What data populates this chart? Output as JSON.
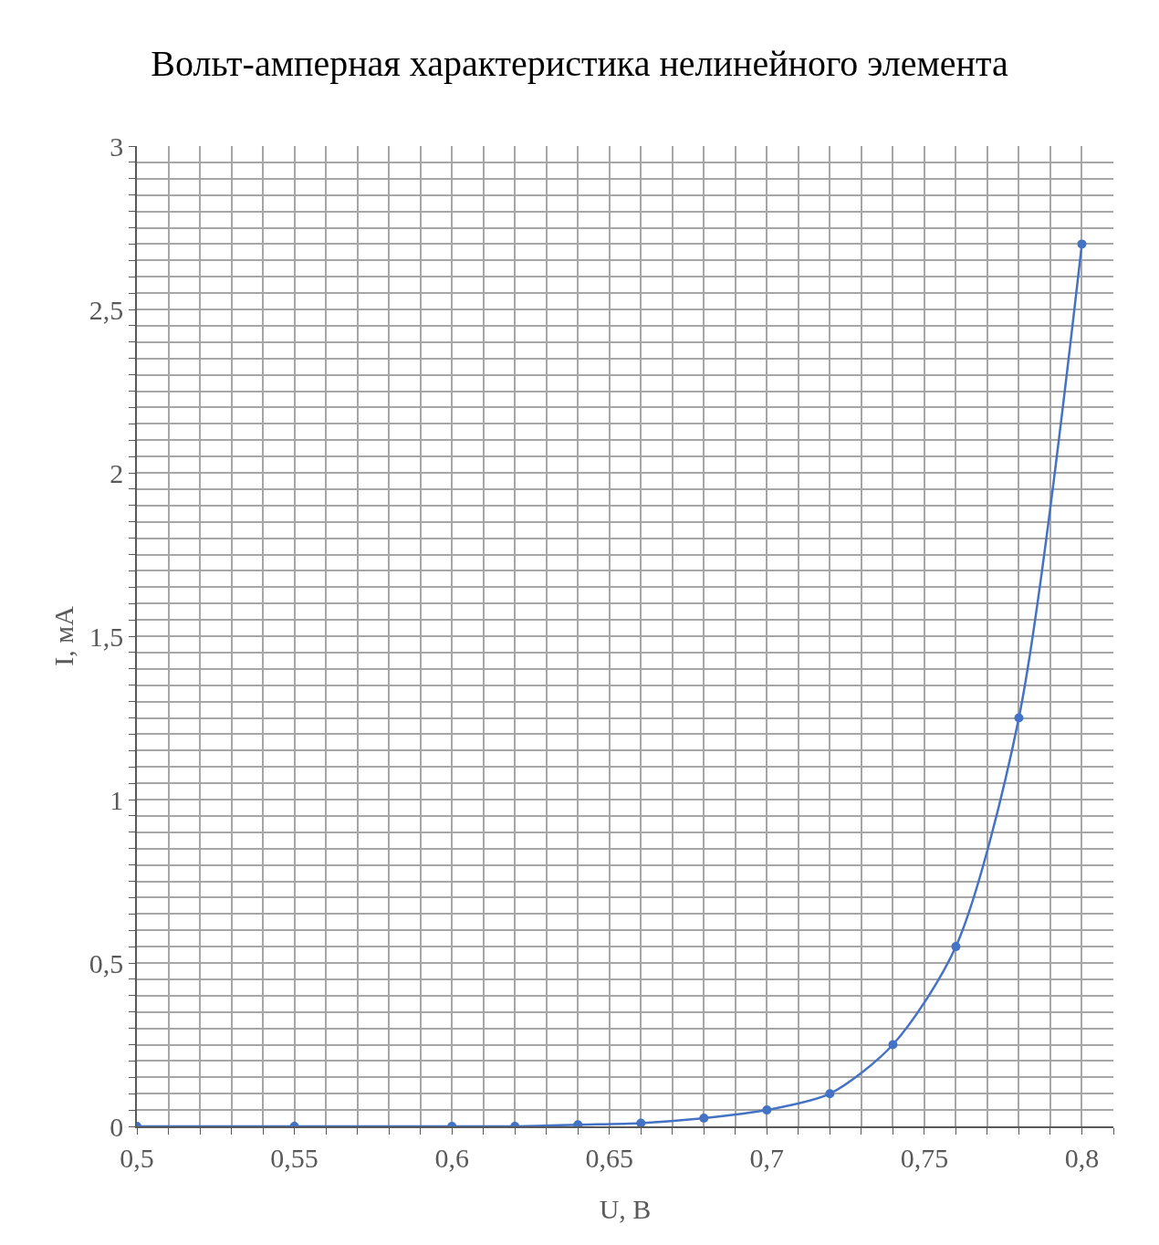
{
  "chart_data": {
    "type": "line",
    "title": "Вольт-амперная характеристика нелинейного элемента",
    "xlabel": "U, В",
    "ylabel": "I, мА",
    "x": [
      0.5,
      0.55,
      0.6,
      0.62,
      0.64,
      0.66,
      0.68,
      0.7,
      0.72,
      0.74,
      0.76,
      0.78,
      0.8
    ],
    "series": [
      {
        "color": "#4472c4",
        "values": [
          0,
          0,
          0,
          0,
          0.005,
          0.01,
          0.025,
          0.05,
          0.1,
          0.25,
          0.55,
          1.25,
          2.7
        ]
      }
    ],
    "xlim": [
      0.5,
      0.81
    ],
    "xticks": [
      {
        "value": 0.5,
        "label": "0,5"
      },
      {
        "value": 0.51,
        "label": null
      },
      {
        "value": 0.52,
        "label": null
      },
      {
        "value": 0.53,
        "label": null
      },
      {
        "value": 0.54,
        "label": null
      },
      {
        "value": 0.55,
        "label": "0,55"
      },
      {
        "value": 0.56,
        "label": null
      },
      {
        "value": 0.57,
        "label": null
      },
      {
        "value": 0.58,
        "label": null
      },
      {
        "value": 0.59,
        "label": null
      },
      {
        "value": 0.6,
        "label": "0,6"
      },
      {
        "value": 0.61,
        "label": null
      },
      {
        "value": 0.62,
        "label": null
      },
      {
        "value": 0.63,
        "label": null
      },
      {
        "value": 0.64,
        "label": null
      },
      {
        "value": 0.65,
        "label": "0,65"
      },
      {
        "value": 0.66,
        "label": null
      },
      {
        "value": 0.67,
        "label": null
      },
      {
        "value": 0.68,
        "label": null
      },
      {
        "value": 0.69,
        "label": null
      },
      {
        "value": 0.7,
        "label": "0,7"
      },
      {
        "value": 0.71,
        "label": null
      },
      {
        "value": 0.72,
        "label": null
      },
      {
        "value": 0.73,
        "label": null
      },
      {
        "value": 0.74,
        "label": null
      },
      {
        "value": 0.75,
        "label": "0,75"
      },
      {
        "value": 0.76,
        "label": null
      },
      {
        "value": 0.77,
        "label": null
      },
      {
        "value": 0.78,
        "label": null
      },
      {
        "value": 0.79,
        "label": null
      },
      {
        "value": 0.8,
        "label": "0,8"
      },
      {
        "value": 0.81,
        "label": null
      }
    ],
    "ylim": [
      0,
      3
    ],
    "yticks": [
      0,
      {
        "value": 0.05,
        "label": null
      },
      {
        "value": 0.1,
        "label": null
      },
      {
        "value": 0.15,
        "label": null
      },
      {
        "value": 0.2,
        "label": null
      },
      {
        "value": 0.25,
        "label": null
      },
      {
        "value": 0.3,
        "label": null
      },
      {
        "value": 0.35,
        "label": null
      },
      {
        "value": 0.4,
        "label": null
      },
      {
        "value": 0.45,
        "label": null
      },
      {
        "value": 0.5,
        "label": "0,5"
      },
      {
        "value": 0.55,
        "label": null
      },
      {
        "value": 0.6,
        "label": null
      },
      {
        "value": 0.65,
        "label": null
      },
      {
        "value": 0.7,
        "label": null
      },
      {
        "value": 0.75,
        "label": null
      },
      {
        "value": 0.8,
        "label": null
      },
      {
        "value": 0.85,
        "label": null
      },
      {
        "value": 0.9,
        "label": null
      },
      {
        "value": 0.95,
        "label": null
      },
      1,
      {
        "value": 1.05,
        "label": null
      },
      {
        "value": 1.1,
        "label": null
      },
      {
        "value": 1.15,
        "label": null
      },
      {
        "value": 1.2,
        "label": null
      },
      {
        "value": 1.25,
        "label": null
      },
      {
        "value": 1.3,
        "label": null
      },
      {
        "value": 1.35,
        "label": null
      },
      {
        "value": 1.4,
        "label": null
      },
      {
        "value": 1.45,
        "label": null
      },
      {
        "value": 1.5,
        "label": "1,5"
      },
      {
        "value": 1.55,
        "label": null
      },
      {
        "value": 1.6,
        "label": null
      },
      {
        "value": 1.65,
        "label": null
      },
      {
        "value": 1.7,
        "label": null
      },
      {
        "value": 1.75,
        "label": null
      },
      {
        "value": 1.8,
        "label": null
      },
      {
        "value": 1.85,
        "label": null
      },
      {
        "value": 1.9,
        "label": null
      },
      {
        "value": 1.95,
        "label": null
      },
      2,
      {
        "value": 2.05,
        "label": null
      },
      {
        "value": 2.1,
        "label": null
      },
      {
        "value": 2.15,
        "label": null
      },
      {
        "value": 2.2,
        "label": null
      },
      {
        "value": 2.25,
        "label": null
      },
      {
        "value": 2.3,
        "label": null
      },
      {
        "value": 2.35,
        "label": null
      },
      {
        "value": 2.4,
        "label": null
      },
      {
        "value": 2.45,
        "label": null
      },
      {
        "value": 2.5,
        "label": "2,5"
      },
      {
        "value": 2.55,
        "label": null
      },
      {
        "value": 2.6,
        "label": null
      },
      {
        "value": 2.65,
        "label": null
      },
      {
        "value": 2.7,
        "label": null
      },
      {
        "value": 2.75,
        "label": null
      },
      {
        "value": 2.8,
        "label": null
      },
      {
        "value": 2.85,
        "label": null
      },
      {
        "value": 2.9,
        "label": null
      },
      {
        "value": 2.95,
        "label": null
      },
      3
    ],
    "grid": true,
    "marker": "circle",
    "line_style": "solid"
  }
}
